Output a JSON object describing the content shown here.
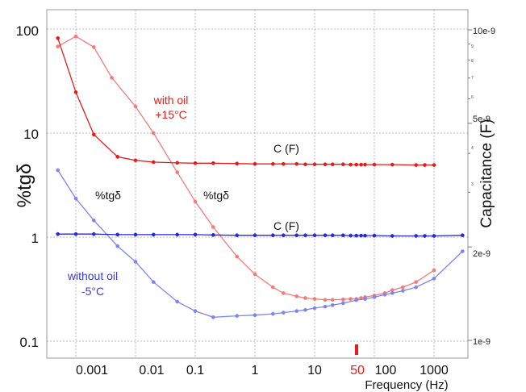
{
  "chart_data": {
    "type": "line",
    "xlabel": "Frequency (Hz)",
    "ylabel": "%tgδ",
    "ylabel_right": "Capacitance (F)",
    "x_scale": "log",
    "xlim": [
      0.0003,
      4000
    ],
    "ylim": [
      0.075,
      125
    ],
    "ylim_right": [
      1e-09,
      1e-08
    ],
    "grid": true,
    "x_ticks": [
      "0.001",
      "0.01",
      "0.1",
      "1",
      "10",
      "100",
      "1000"
    ],
    "x_marker_label": "50",
    "x_marker_value": 50,
    "y_ticks": [
      "0.1",
      "1",
      "10",
      "100"
    ],
    "y_ticks_right": [
      "1e-9",
      "2e-9",
      "5e-9",
      "10e-9"
    ],
    "y_minor_ticks_right": [
      "9",
      "8",
      "7",
      "6",
      "4",
      "3"
    ],
    "annotations": {
      "with_oil_line1": "with oil",
      "with_oil_line2": "+15°C",
      "without_oil_line1": "without oil",
      "without_oil_line2": "-5°C",
      "tg_label_blue": "%tgδ",
      "tg_label_red": "%tgδ",
      "cap_label_red": "C (F)",
      "cap_label_blue": "C (F)"
    },
    "series": [
      {
        "color": "#f27b7b",
        "axis": "left",
        "x": [
          0.0005,
          0.001,
          0.002,
          0.004,
          0.01,
          0.02,
          0.05,
          0.1,
          0.2,
          0.5,
          1,
          2,
          3,
          5,
          7,
          10,
          15,
          20,
          30,
          40,
          50,
          60,
          70,
          100,
          150,
          200,
          300,
          500,
          1000
        ],
        "values": [
          68,
          85,
          67,
          34,
          18,
          10,
          4.2,
          2.2,
          1.25,
          0.65,
          0.44,
          0.33,
          0.29,
          0.27,
          0.26,
          0.255,
          0.25,
          0.25,
          0.252,
          0.255,
          0.255,
          0.26,
          0.265,
          0.275,
          0.29,
          0.31,
          0.33,
          0.37,
          0.48
        ]
      },
      {
        "color": "#e51c1c",
        "axis": "right",
        "x": [
          0.0005,
          0.001,
          0.002,
          0.005,
          0.01,
          0.02,
          0.05,
          0.1,
          0.2,
          0.5,
          1,
          2,
          3,
          5,
          7,
          10,
          15,
          20,
          30,
          40,
          50,
          60,
          70,
          100,
          200,
          500,
          700,
          1000
        ],
        "values": [
          9.4e-09,
          6.3e-09,
          4.6e-09,
          3.9e-09,
          3.8e-09,
          3.75e-09,
          3.73e-09,
          3.72e-09,
          3.72e-09,
          3.71e-09,
          3.7e-09,
          3.7e-09,
          3.7e-09,
          3.7e-09,
          3.69e-09,
          3.69e-09,
          3.69e-09,
          3.69e-09,
          3.69e-09,
          3.68e-09,
          3.68e-09,
          3.68e-09,
          3.68e-09,
          3.68e-09,
          3.68e-09,
          3.67e-09,
          3.67e-09,
          3.67e-09
        ]
      },
      {
        "color": "#7f85ee",
        "axis": "left",
        "x": [
          0.0005,
          0.001,
          0.002,
          0.005,
          0.01,
          0.02,
          0.05,
          0.1,
          0.2,
          0.5,
          1,
          2,
          3,
          5,
          7,
          10,
          15,
          20,
          30,
          50,
          70,
          100,
          150,
          200,
          300,
          500,
          1000,
          3000
        ],
        "values": [
          4.4,
          2.35,
          1.45,
          0.82,
          0.58,
          0.37,
          0.24,
          0.195,
          0.17,
          0.175,
          0.178,
          0.183,
          0.188,
          0.195,
          0.2,
          0.208,
          0.215,
          0.222,
          0.232,
          0.248,
          0.255,
          0.265,
          0.28,
          0.29,
          0.305,
          0.33,
          0.4,
          0.73
        ]
      },
      {
        "color": "#2929d6",
        "axis": "right",
        "x": [
          0.0005,
          0.001,
          0.002,
          0.005,
          0.01,
          0.02,
          0.05,
          0.1,
          0.2,
          0.5,
          1,
          2,
          3,
          5,
          7,
          10,
          15,
          20,
          30,
          40,
          50,
          60,
          70,
          100,
          200,
          500,
          700,
          1000,
          3000
        ],
        "values": [
          2.2e-09,
          2.2e-09,
          2.2e-09,
          2.19e-09,
          2.19e-09,
          2.19e-09,
          2.19e-09,
          2.19e-09,
          2.185e-09,
          2.18e-09,
          2.18e-09,
          2.18e-09,
          2.18e-09,
          2.18e-09,
          2.18e-09,
          2.18e-09,
          2.18e-09,
          2.18e-09,
          2.18e-09,
          2.175e-09,
          2.175e-09,
          2.175e-09,
          2.175e-09,
          2.175e-09,
          2.17e-09,
          2.17e-09,
          2.17e-09,
          2.17e-09,
          2.18e-09
        ]
      }
    ]
  }
}
